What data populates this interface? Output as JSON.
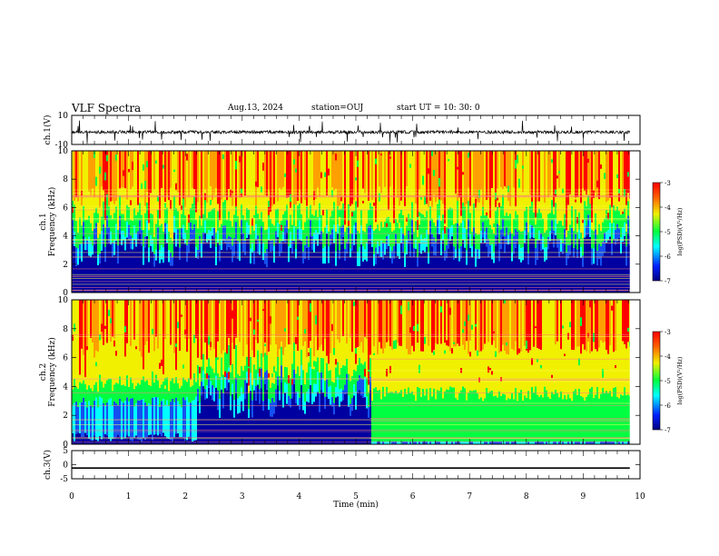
{
  "header": {
    "title": "VLF Spectra",
    "date": "Aug.13, 2024",
    "station": "station=OUJ",
    "start": "start  UT =   10: 30: 0"
  },
  "chart_data": [
    {
      "type": "line",
      "title": "",
      "ylabel": "ch.1(V)",
      "ylim": [
        -10,
        10
      ],
      "yticks": [
        "10",
        "-10"
      ],
      "description_values": {
        "baseline": -1.5,
        "spike_max": 7,
        "spike_min": -6
      }
    },
    {
      "type": "heatmap",
      "ylabel": "ch.1\nFrequency (kHz)",
      "ylim": [
        0,
        10
      ],
      "yticks": [
        "0",
        "2",
        "4",
        "6",
        "8",
        "10"
      ],
      "colorbar": {
        "label": "log(PSD)(V²/Hz)",
        "range": [
          -7,
          -3
        ],
        "ticks": [
          "-3",
          "-4",
          "-5",
          "-6",
          "-7"
        ]
      }
    },
    {
      "type": "heatmap",
      "ylabel": "ch.2\nFrequency (kHz)",
      "ylim": [
        0,
        10
      ],
      "yticks": [
        "0",
        "2",
        "4",
        "6",
        "8",
        "10"
      ],
      "colorbar": {
        "label": "log(PSD)(V²/Hz)",
        "range": [
          -7,
          -3
        ],
        "ticks": [
          "-3",
          "-4",
          "-5",
          "-6",
          "-7"
        ]
      }
    },
    {
      "type": "line",
      "ylabel": "ch.3(V)",
      "ylim": [
        -5,
        5
      ],
      "yticks": [
        "5",
        "0",
        "-5"
      ],
      "values": {
        "constant": -1.2
      }
    }
  ],
  "xaxis": {
    "label": "Time (min)",
    "range": [
      0,
      10
    ],
    "ticks": [
      "0",
      "1",
      "2",
      "3",
      "4",
      "5",
      "6",
      "7",
      "8",
      "9",
      "10"
    ],
    "data_end": 9.82
  },
  "colors": {
    "dark_blue": "#0000a0",
    "blue": "#1450f0",
    "cyan": "#00ffff",
    "green": "#00ff40",
    "yellow": "#f0f000",
    "orange": "#ffa000",
    "red": "#ff0000"
  }
}
